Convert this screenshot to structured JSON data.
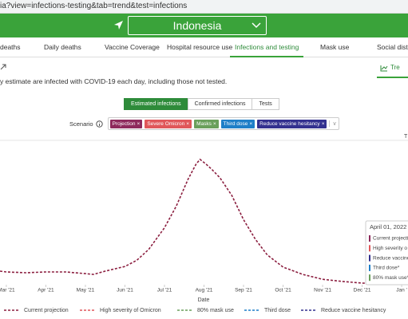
{
  "url": "ia?view=infections-testing&tab=trend&test=infections",
  "location": "Indonesia",
  "tabs": [
    "deaths",
    "Daily deaths",
    "Vaccine Coverage",
    "Hospital resource use",
    "Infections and testing",
    "Mask use",
    "Social dista"
  ],
  "active_tab": 4,
  "view_toggle": "Tre",
  "description": "y estimate are infected with COVID-19 each day, including those not tested.",
  "measure_buttons": [
    "Estimated infections",
    "Confirmed infections",
    "Tests"
  ],
  "active_measure": 0,
  "scenario_label": "Scenario",
  "scenarios": [
    {
      "label": "Projection",
      "color": "#8e2a5c"
    },
    {
      "label": "Severe Omicron",
      "color": "#e0575a"
    },
    {
      "label": "Masks",
      "color": "#6a9f5b"
    },
    {
      "label": "Third dose",
      "color": "#1f7fc8"
    },
    {
      "label": "Reduce vaccine hesitancy",
      "color": "#33318f"
    }
  ],
  "chart_data": {
    "type": "line",
    "corner_label": "T",
    "x_label": "Date",
    "xlim": [
      -0.16,
      10.16
    ],
    "xticks": [
      {
        "value": 0,
        "label": "Mar '21"
      },
      {
        "value": 1,
        "label": "Apr '21"
      },
      {
        "value": 2,
        "label": "May '21"
      },
      {
        "value": 3,
        "label": "Jun '21"
      },
      {
        "value": 4,
        "label": "Jul '21"
      },
      {
        "value": 5,
        "label": "Aug '21"
      },
      {
        "value": 6,
        "label": "Sep '21"
      },
      {
        "value": 7,
        "label": "Oct '21"
      },
      {
        "value": 8,
        "label": "Nov '21"
      },
      {
        "value": 9,
        "label": "Dec '21"
      },
      {
        "value": 10,
        "label": "Jan '"
      }
    ],
    "ylim": [
      0,
      100
    ],
    "x": [
      -0.16,
      0,
      0.5,
      1,
      1.5,
      2,
      2.2,
      2.5,
      3,
      3.3,
      3.6,
      4,
      4.3,
      4.6,
      4.8,
      4.9,
      5.05,
      5.2,
      5.4,
      5.7,
      6,
      6.3,
      6.6,
      7,
      7.5,
      8,
      8.5,
      9,
      9.5,
      10,
      10.16
    ],
    "series": [
      {
        "color": "#8b1e3f",
        "values": [
          10,
          9.4,
          8.8,
          9.4,
          9.4,
          8.2,
          7.6,
          10,
          13.5,
          18,
          26,
          42,
          58,
          78,
          89,
          92.4,
          89,
          85,
          79,
          66,
          48,
          33.5,
          22,
          13,
          7.6,
          4,
          2.4,
          1.2,
          0.9,
          0.6,
          0.6
        ]
      }
    ],
    "legend": [
      {
        "name": "Current projection",
        "color": "#8b1e3f"
      },
      {
        "name": "High severity of Omicron",
        "color": "#e0575a"
      },
      {
        "name": "80% mask use",
        "color": "#6a9f5b"
      },
      {
        "name": "Third dose",
        "color": "#1f7fc8"
      },
      {
        "name": "Reduce vaccine hesitancy",
        "color": "#33318f"
      }
    ],
    "tooltip": {
      "title": "April 01, 2022",
      "items": [
        {
          "label": "Current projectio",
          "color": "#8e2a5c"
        },
        {
          "label": "High severity o",
          "color": "#e0575a"
        },
        {
          "label": "Reduce vaccine",
          "color": "#33318f"
        },
        {
          "label": "Third dose*",
          "color": "#1f7fc8"
        },
        {
          "label": "80% mask use*",
          "color": "#6a9f5b"
        }
      ]
    }
  }
}
